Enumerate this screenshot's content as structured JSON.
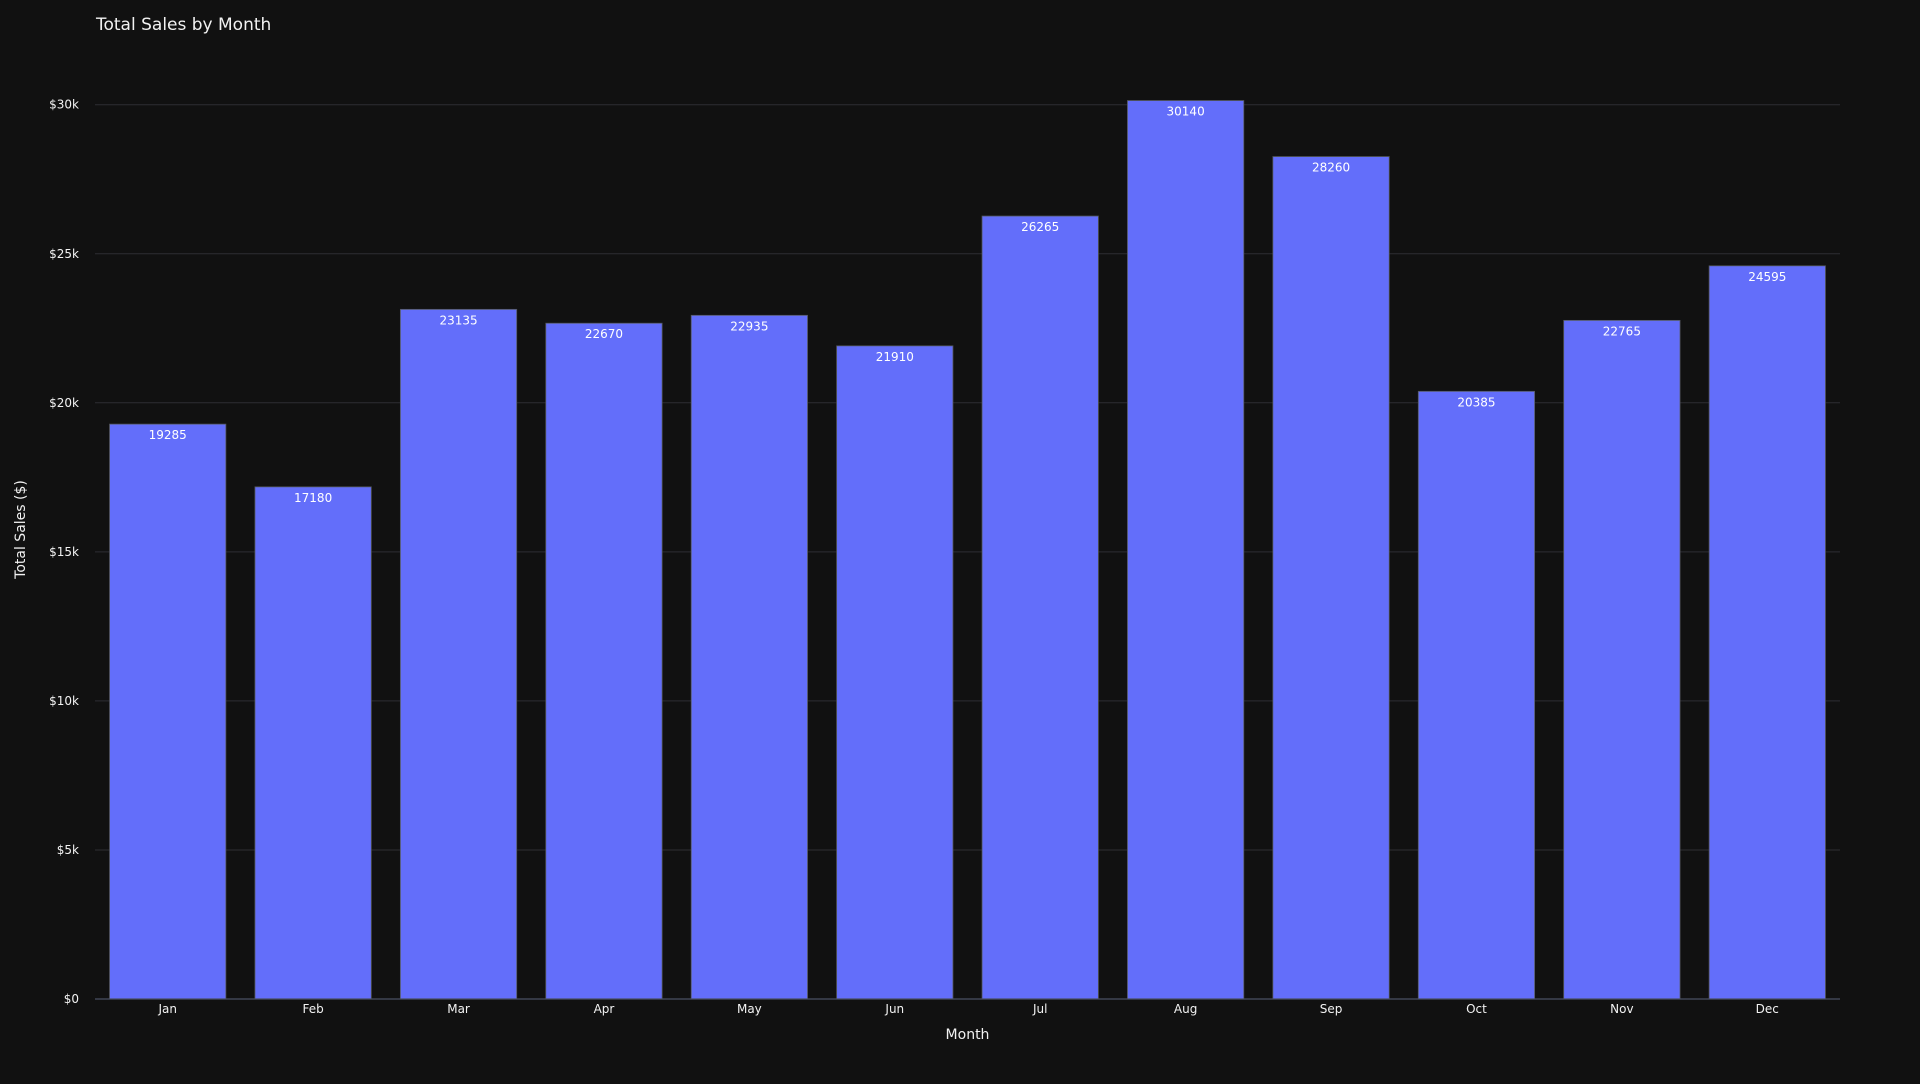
{
  "chart_data": {
    "type": "bar",
    "title": "Total Sales by Month",
    "xlabel": "Month",
    "ylabel": "Total Sales ($)",
    "categories": [
      "Jan",
      "Feb",
      "Mar",
      "Apr",
      "May",
      "Jun",
      "Jul",
      "Aug",
      "Sep",
      "Oct",
      "Nov",
      "Dec"
    ],
    "values": [
      19285,
      17180,
      23135,
      22670,
      22935,
      21910,
      26265,
      30140,
      28260,
      20385,
      22765,
      24595
    ],
    "ylim": [
      0,
      31500
    ],
    "yticks": [
      0,
      5000,
      10000,
      15000,
      20000,
      25000,
      30000
    ],
    "ytick_labels": [
      "$0",
      "$5k",
      "$10k",
      "$15k",
      "$20k",
      "$25k",
      "$30k"
    ],
    "grid": true,
    "legend": "none",
    "colors": {
      "background": "#111111",
      "bar": "#636efa",
      "grid": "#2e2e33",
      "text": "#f2f2f2"
    }
  }
}
